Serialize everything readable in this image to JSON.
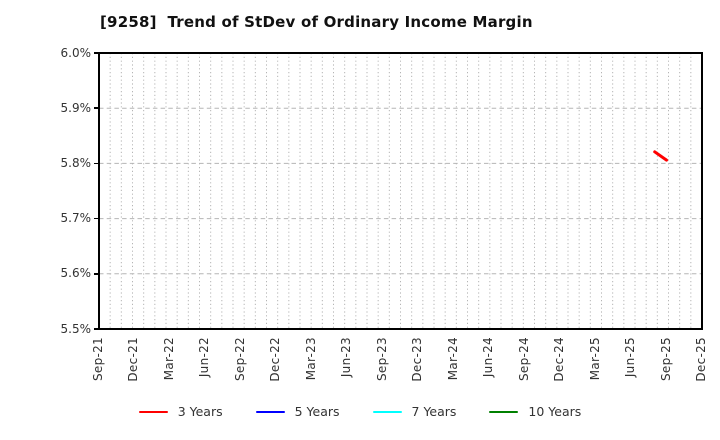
{
  "title": "[9258]  Trend of StDev of Ordinary Income Margin",
  "chart_data": {
    "type": "line",
    "title": "[9258]  Trend of StDev of Ordinary Income Margin",
    "xlabel": "",
    "ylabel": "",
    "grid": true,
    "legend_position": "bottom",
    "y_axis": {
      "min": 5.5,
      "max": 6.0,
      "unit": "%",
      "tick_labels": [
        "6.0%",
        "5.9%",
        "5.8%",
        "5.7%",
        "5.6%",
        "5.5%"
      ],
      "tick_values": [
        6.0,
        5.9,
        5.8,
        5.7,
        5.6,
        5.5
      ]
    },
    "x_axis": {
      "start": "Sep-21",
      "end": "Dec-25",
      "tick_labels": [
        "Sep-21",
        "Dec-21",
        "Mar-22",
        "Jun-22",
        "Sep-22",
        "Dec-22",
        "Mar-23",
        "Jun-23",
        "Sep-23",
        "Dec-23",
        "Mar-24",
        "Jun-24",
        "Sep-24",
        "Dec-24",
        "Mar-25",
        "Jun-25",
        "Sep-25",
        "Dec-25"
      ]
    },
    "series": [
      {
        "name": "3 Years",
        "color": "#ff0000",
        "points": [
          {
            "x": "Aug-25",
            "y": 5.821
          },
          {
            "x": "Sep-25",
            "y": 5.806
          }
        ]
      },
      {
        "name": "5 Years",
        "color": "#0000ff",
        "points": []
      },
      {
        "name": "7 Years",
        "color": "#00ffff",
        "points": []
      },
      {
        "name": "10 Years",
        "color": "#008000",
        "points": []
      }
    ]
  },
  "colors": {
    "spine": "#000000",
    "grid": "#b5b5b5",
    "tick_text": "#333333",
    "title_text": "#111111",
    "background": "#ffffff"
  }
}
